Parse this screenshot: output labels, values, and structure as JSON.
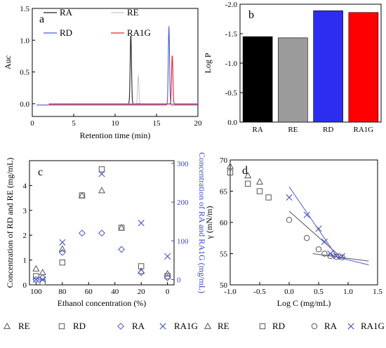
{
  "chart_data": [
    {
      "id": "a",
      "type": "line",
      "panel_label": "a",
      "xlabel": "Retention time (min)",
      "ylabel": "Auc",
      "xlim": [
        0,
        20
      ],
      "ylim": [
        -0.2,
        1.5
      ],
      "xticks": [
        0,
        5,
        10,
        15,
        20
      ],
      "yticks": [
        0.0,
        0.5,
        1.0,
        1.5
      ],
      "ytick_labels": [
        "0.0",
        "0.5",
        "1.0",
        "1.5"
      ],
      "series": [
        {
          "name": "RA",
          "color": "#222222",
          "baseline": 0,
          "peaks": [
            [
              11.9,
              1.1
            ]
          ]
        },
        {
          "name": "RE",
          "color": "#c8c8c8",
          "baseline": 0,
          "peaks": [
            [
              12.8,
              0.45
            ]
          ]
        },
        {
          "name": "RD",
          "color": "#4d5bd6",
          "baseline": -0.02,
          "peaks": [
            [
              16.5,
              1.24
            ]
          ]
        },
        {
          "name": "RA1G",
          "color": "#e8242c",
          "baseline": -0.005,
          "peaks": [
            [
              16.9,
              0.78
            ]
          ]
        }
      ]
    },
    {
      "id": "b",
      "type": "bar",
      "panel_label": "b",
      "ylabel": "Log P",
      "categories": [
        "RA",
        "RE",
        "RD",
        "RA1G"
      ],
      "values": [
        -1.45,
        -1.43,
        -1.89,
        -1.86
      ],
      "colors": [
        "#000000",
        "#9b9b9b",
        "#2d2df0",
        "#ff0000"
      ],
      "ylim": [
        0,
        -2.0
      ],
      "yticks": [
        -2.0,
        -1.5,
        -1.0,
        -0.5,
        0.0
      ],
      "ytick_labels": [
        "-2.0",
        "-1.5",
        "-1.0",
        "-0.5",
        "0.0"
      ]
    },
    {
      "id": "c",
      "type": "scatter",
      "panel_label": "c",
      "xlabel": "Ethanol concentration (%)",
      "ylabel": "Concentration of RD and RE (mg/mL)",
      "ylabel_right": "Concentration of RA and RA1G (mg/mL)",
      "xlim": [
        105,
        -5
      ],
      "xticks": [
        100,
        80,
        60,
        40,
        20,
        0
      ],
      "ylim_left": [
        0,
        5
      ],
      "yticks_left": [
        0,
        1,
        2,
        3,
        4
      ],
      "ylim_right": [
        -13.6,
        307
      ],
      "yticks_right": [
        0,
        100,
        200,
        300
      ],
      "series": [
        {
          "name": "RE",
          "marker": "triangle",
          "axis": "left",
          "color": "#555555",
          "x": [
            100,
            95,
            80,
            65,
            50,
            35,
            20,
            0
          ],
          "y": [
            0.65,
            0.5,
            1.45,
            3.6,
            3.8,
            2.3,
            0.55,
            0.45
          ]
        },
        {
          "name": "RD",
          "marker": "square",
          "axis": "left",
          "color": "#555555",
          "x": [
            100,
            95,
            80,
            65,
            50,
            35,
            20,
            0
          ],
          "y": [
            0.35,
            0.1,
            0.9,
            3.6,
            4.65,
            2.3,
            0.75,
            0.35
          ]
        },
        {
          "name": "RA",
          "marker": "diamond",
          "axis": "right",
          "color": "#4a55d0",
          "x": [
            100,
            95,
            80,
            65,
            50,
            35,
            20,
            0
          ],
          "y": [
            0,
            5,
            70,
            120,
            120,
            78,
            18,
            5
          ]
        },
        {
          "name": "RA1G",
          "marker": "x",
          "axis": "right",
          "color": "#4a55d0",
          "x": [
            100,
            95,
            80,
            50,
            20,
            0
          ],
          "y": [
            0,
            0,
            96,
            273,
            146,
            60
          ]
        }
      ]
    },
    {
      "id": "d",
      "type": "scatter",
      "panel_label": "d",
      "xlabel": "Log C (mg/mL)",
      "ylabel": "γ (mN/m)",
      "xlim": [
        -1.0,
        1.5
      ],
      "xticks": [
        -1.0,
        -0.5,
        0.0,
        0.5,
        1.0,
        1.5
      ],
      "xtick_labels": [
        "-1.0",
        "-0.5",
        "0.0",
        "0.5",
        "1.0",
        "1.5"
      ],
      "ylim": [
        50,
        70
      ],
      "yticks": [
        50,
        55,
        60,
        65,
        70
      ],
      "series": [
        {
          "name": "RE",
          "marker": "triangle",
          "color": "#555555",
          "x": [
            -1.0,
            -0.7,
            -0.5
          ],
          "y": [
            69.0,
            67.5,
            66.5
          ]
        },
        {
          "name": "RD",
          "marker": "square",
          "color": "#555555",
          "x": [
            -1.0,
            -0.7,
            -0.5,
            -0.35
          ],
          "y": [
            68.0,
            66.2,
            65.0,
            64.0
          ]
        },
        {
          "name": "RA",
          "marker": "circle",
          "color": "#555555",
          "x": [
            0.0,
            0.3,
            0.5,
            0.6,
            0.7,
            0.8,
            0.9
          ],
          "y": [
            60.4,
            57.5,
            55.7,
            55.0,
            54.6,
            54.5,
            54.4
          ]
        },
        {
          "name": "RA1G",
          "marker": "x",
          "color": "#4a55d0",
          "x": [
            0.0,
            0.3,
            0.5,
            0.6,
            0.7,
            0.8,
            0.9
          ],
          "y": [
            64.0,
            61.2,
            59.0,
            56.9,
            55.0,
            54.6,
            54.6
          ]
        }
      ],
      "fit_lines": [
        {
          "color": "#555555",
          "x": [
            0.0,
            0.85
          ],
          "y": [
            61.8,
            54.7
          ]
        },
        {
          "color": "#555555",
          "x": [
            0.4,
            1.35
          ],
          "y": [
            55.0,
            53.8
          ]
        },
        {
          "color": "#4a55d0",
          "x": [
            0.0,
            0.85
          ],
          "y": [
            65.7,
            54.0
          ]
        },
        {
          "color": "#4a55d0",
          "x": [
            0.7,
            1.35
          ],
          "y": [
            54.7,
            53.2
          ]
        }
      ]
    }
  ]
}
